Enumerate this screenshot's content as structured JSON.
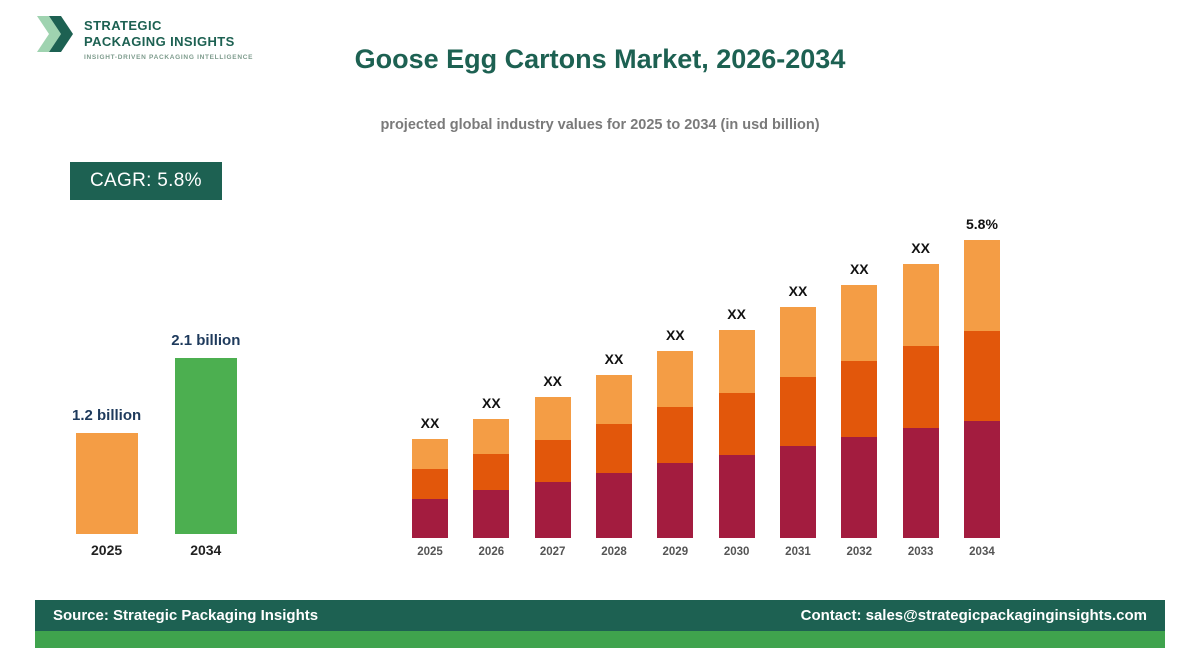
{
  "logo": {
    "line1": "STRATEGIC",
    "line2": "PACKAGING INSIGHTS",
    "tagline": "INSIGHT-DRIVEN PACKAGING INTELLIGENCE"
  },
  "header": {
    "title": "Goose Egg Cartons Market, 2026-2034",
    "subtitle": "projected global industry values for 2025 to 2034 (in usd billion)"
  },
  "cagr": {
    "label": "CAGR: 5.8%"
  },
  "colors": {
    "brand_teal": "#1d6152",
    "green_bar": "#4caf50",
    "orange_light": "#f49d45",
    "orange_dark": "#e2570b",
    "crimson": "#a31c3f",
    "footer_strip_green": "#3fa34d",
    "value_label_navy": "#1e3a5c"
  },
  "mini_chart": {
    "type": "bar",
    "unit": "usd billion",
    "bars": [
      {
        "year": "2025",
        "label": "1.2 billion",
        "value": 1.2,
        "color": "#f49d45"
      },
      {
        "year": "2034",
        "label": "2.1 billion",
        "value": 2.1,
        "color": "#4caf50"
      }
    ]
  },
  "chart_data": {
    "type": "stacked-bar",
    "title": "Goose Egg Cartons Market, 2026-2034",
    "categories": [
      "2025",
      "2026",
      "2027",
      "2028",
      "2029",
      "2030",
      "2031",
      "2032",
      "2033",
      "2034"
    ],
    "bar_labels": [
      "XX",
      "XX",
      "XX",
      "XX",
      "XX",
      "XX",
      "XX",
      "XX",
      "XX",
      "5.8%"
    ],
    "series": [
      {
        "name": "bottom",
        "color": "#a31c3f",
        "values": [
          39,
          48,
          56,
          65,
          75,
          83,
          92,
          101,
          110,
          117
        ]
      },
      {
        "name": "middle",
        "color": "#e2570b",
        "values": [
          30,
          36,
          42,
          49,
          56,
          62,
          69,
          76,
          82,
          90
        ]
      },
      {
        "name": "top",
        "color": "#f49d45",
        "values": [
          30,
          35,
          43,
          49,
          56,
          63,
          70,
          76,
          82,
          91
        ]
      }
    ],
    "note": "segment values are relative units estimated from bar heights; source bars are labeled XX",
    "legend": "none",
    "grid": false
  },
  "footer": {
    "source": "Source: Strategic Packaging Insights",
    "contact": "Contact: sales@strategicpackaginginsights.com"
  }
}
